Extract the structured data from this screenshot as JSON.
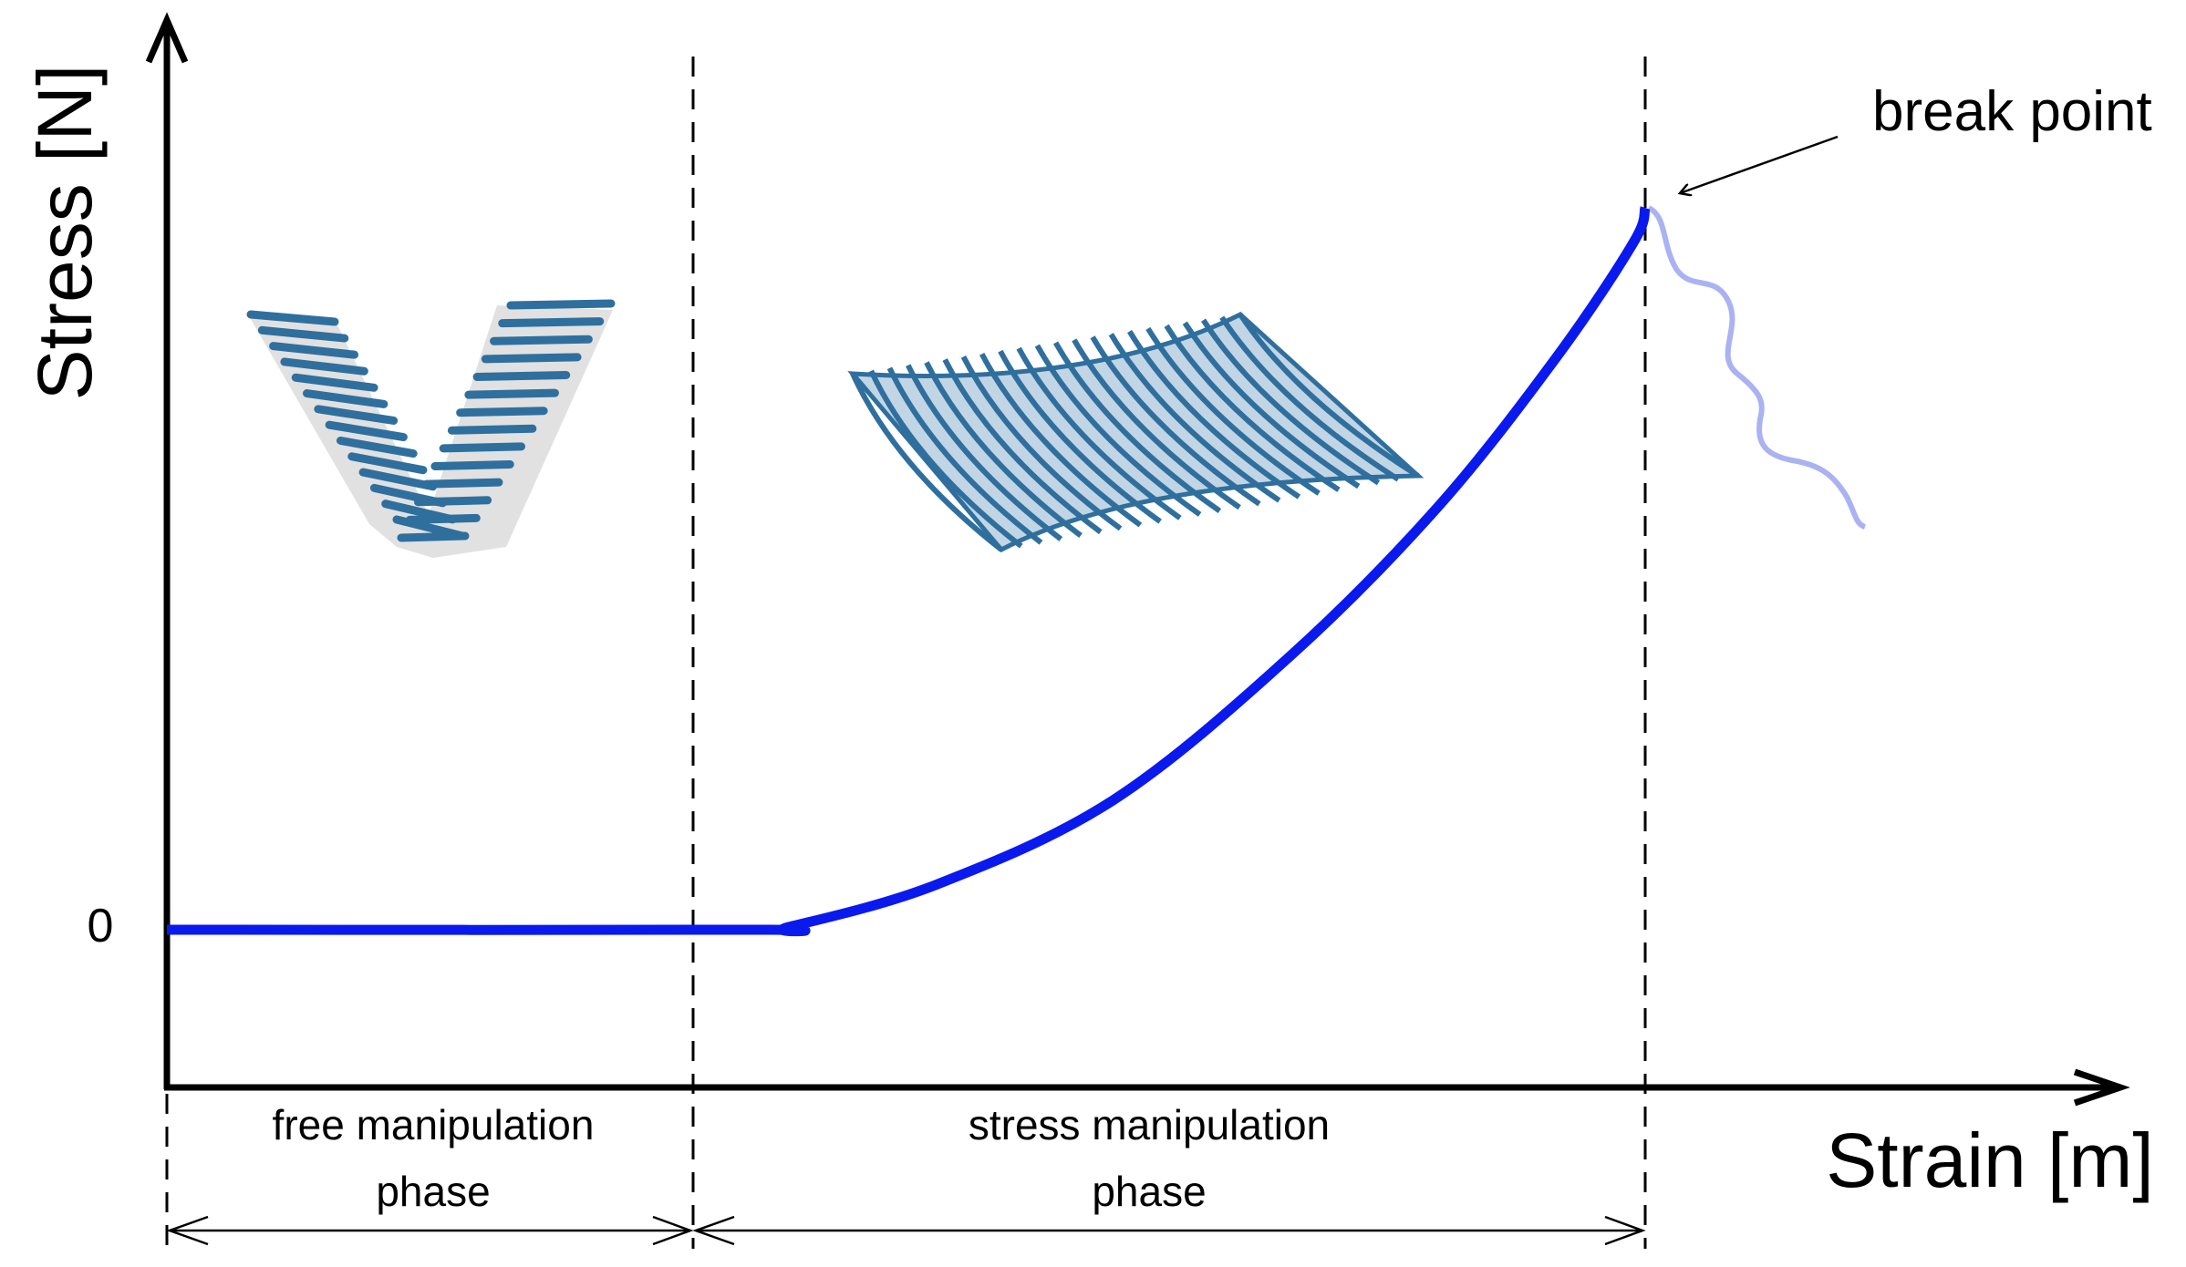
{
  "chart_data": {
    "type": "line",
    "xlabel": "Strain [m]",
    "ylabel": "Stress [N]",
    "yticks": [
      "0"
    ],
    "phases": [
      {
        "label_line1": "free manipulation",
        "label_line2": "phase"
      },
      {
        "label_line1": "stress manipulation",
        "label_line2": "phase"
      }
    ],
    "annotation": "break point",
    "series": [
      {
        "values": [
          [
            0,
            0
          ],
          [
            1,
            0
          ],
          [
            1.05,
            0.005
          ],
          [
            1.3,
            0.09
          ],
          [
            1.6,
            0.26
          ],
          [
            1.9,
            0.55
          ],
          [
            2.15,
            0.85
          ],
          [
            2.35,
            1.15
          ],
          [
            2.48,
            1.38
          ],
          [
            2.5,
            1.45
          ]
        ]
      }
    ],
    "colors": {
      "curve": "#0a19ee",
      "after_break": "#aab2f2",
      "mesh": "#2f6f9e"
    }
  }
}
